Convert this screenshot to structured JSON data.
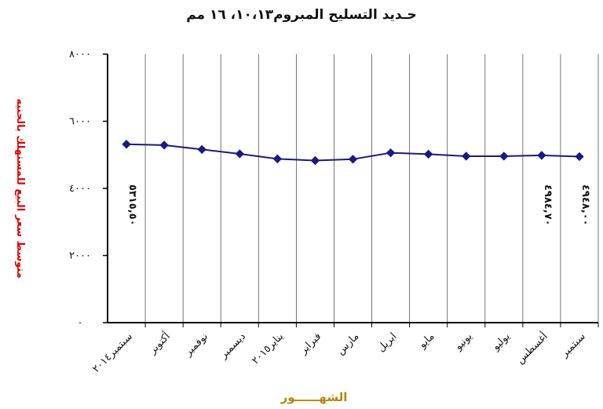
{
  "chart_data": {
    "type": "line",
    "title": "حـديد التسليح المبروم١٠،١٣، ١٦ مم",
    "xlabel": "الشهــــــور",
    "ylabel": "متوسط سعر البيع للمستهلك بالجنيه",
    "ylim": [
      0,
      8000
    ],
    "yticks": [
      "٠",
      "٢٠٠٠",
      "٤٠٠٠",
      "٦٠٠٠",
      "٨٠٠٠"
    ],
    "grid": "vertical",
    "categories": [
      "سبتمبر٢٠١٤",
      "أكتوبر",
      "نوفمبر",
      "ديسمبر",
      "يناير٢٠١٥",
      "فبراير",
      "مارس",
      "ابريل",
      "مايو",
      "يونيو",
      "يوليو",
      "أغسطس",
      "سبتمبر"
    ],
    "series": [
      {
        "values": [
          5315.5,
          5290,
          5160,
          5030,
          4880,
          4830,
          4870,
          5060,
          5020,
          4960,
          4960,
          4984.7,
          4948
        ]
      }
    ],
    "annotations": [
      {
        "index": 0,
        "text": "٥٣١٥,٥٠"
      },
      {
        "index": 11,
        "text": "٤٩٨٤,٧٠"
      },
      {
        "index": 12,
        "text": "٤٩٤٨,٠٠"
      }
    ],
    "colors": {
      "line": "#1a1a80",
      "marker": "#1a1a80",
      "ylabel": "#e00000",
      "xlabel": "#b8860b"
    }
  }
}
